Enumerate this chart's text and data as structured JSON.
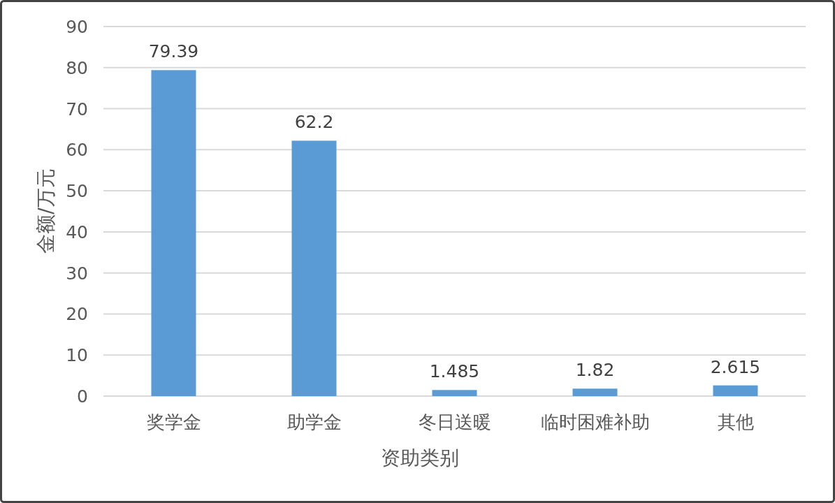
{
  "chart_data": {
    "type": "bar",
    "xlabel": "资助类别",
    "ylabel": "金额/万元",
    "categories": [
      "奖学金",
      "助学金",
      "冬日送暖",
      "临时困难补助",
      "其他"
    ],
    "values": [
      79.39,
      62.2,
      1.485,
      1.82,
      2.615
    ],
    "color": "#5b9bd5",
    "ylim": [
      0,
      90
    ],
    "yticks": [
      0,
      10,
      20,
      30,
      40,
      50,
      60,
      70,
      80,
      90
    ],
    "grid": "y",
    "data_labels": true
  }
}
